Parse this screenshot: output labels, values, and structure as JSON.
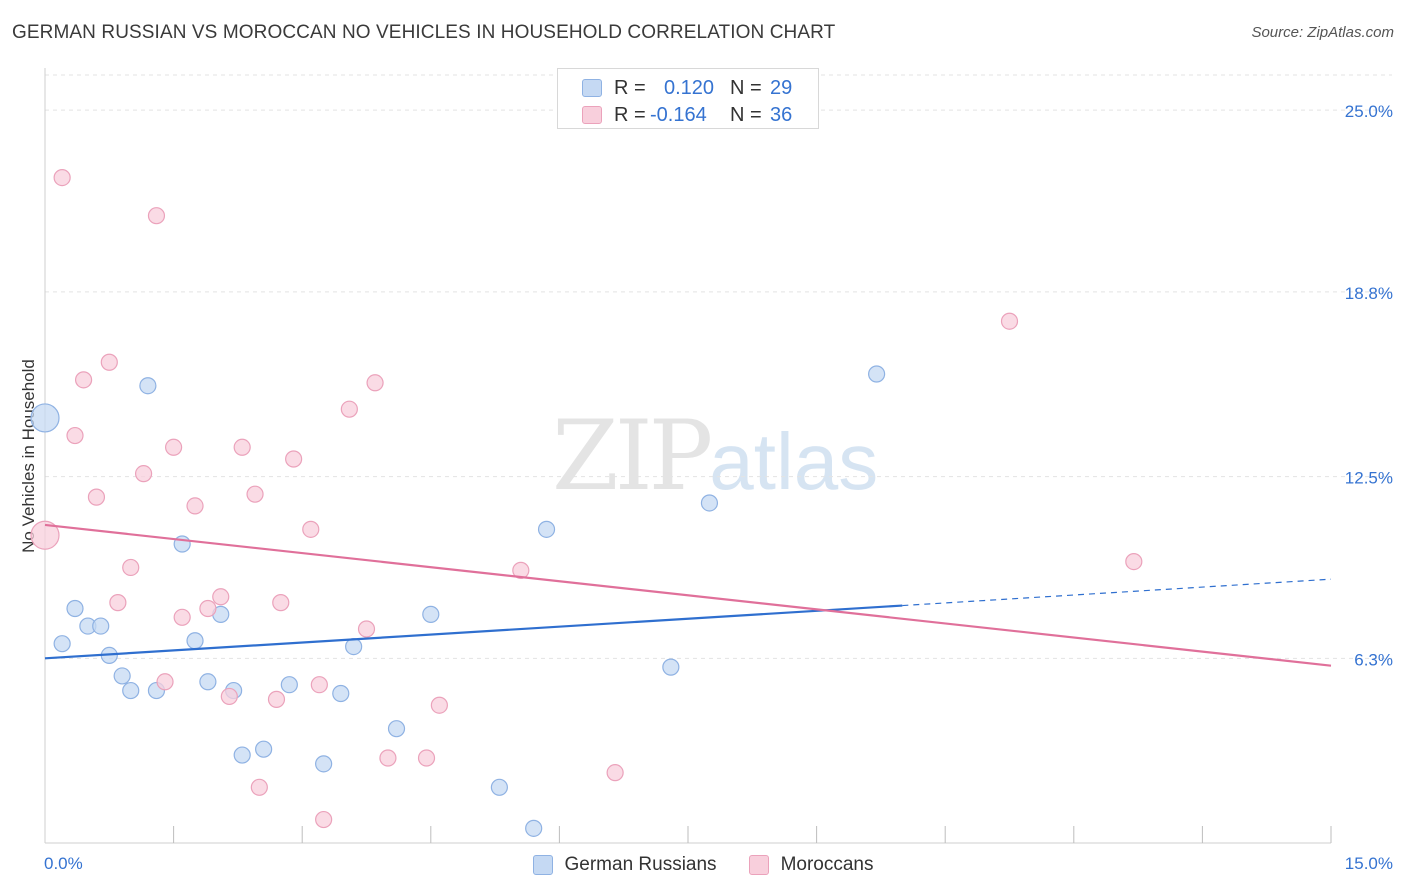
{
  "header": {
    "title": "GERMAN RUSSIAN VS MOROCCAN NO VEHICLES IN HOUSEHOLD CORRELATION CHART",
    "source": "Source: ZipAtlas.com"
  },
  "watermark": {
    "zip": "ZIP",
    "atlas": "atlas"
  },
  "legend_top": {
    "rows": [
      {
        "r_label": "R =",
        "r_value": "0.120",
        "n_label": "N =",
        "n_value": "29"
      },
      {
        "r_label": "R =",
        "r_value": "-0.164",
        "n_label": "N =",
        "n_value": "36"
      }
    ]
  },
  "legend_bottom": {
    "items": [
      {
        "label": "German Russians"
      },
      {
        "label": "Moroccans"
      }
    ]
  },
  "colors": {
    "blue_fill": "#c5d9f3",
    "blue_stroke": "#8fb2e3",
    "blue_line": "#2f6fcf",
    "pink_fill": "#f8cfdc",
    "pink_stroke": "#eba2bb",
    "pink_line": "#e0709a",
    "tick_text": "#3573d1",
    "grid": "#e3e3e3"
  },
  "chart_data": {
    "type": "scatter",
    "title": "GERMAN RUSSIAN VS MOROCCAN NO VEHICLES IN HOUSEHOLD CORRELATION CHART",
    "xlabel": "",
    "ylabel": "No Vehicles in Household",
    "xlim": [
      0,
      15
    ],
    "ylim": [
      0,
      26.2
    ],
    "x_tick_labels": [
      "0.0%",
      "15.0%"
    ],
    "y_ticks": [
      6.3,
      12.5,
      18.8,
      25.0
    ],
    "y_tick_labels": [
      "6.3%",
      "12.5%",
      "18.8%",
      "25.0%"
    ],
    "grid": true,
    "legend_position": "top-center",
    "series": [
      {
        "name": "German Russians",
        "color": "#8fb2e3",
        "r": 0.12,
        "n": 29,
        "points": [
          {
            "x": 0.0,
            "y": 14.5,
            "big": true
          },
          {
            "x": 0.2,
            "y": 6.8
          },
          {
            "x": 0.35,
            "y": 8.0
          },
          {
            "x": 0.5,
            "y": 7.4
          },
          {
            "x": 0.65,
            "y": 7.4
          },
          {
            "x": 0.75,
            "y": 6.4
          },
          {
            "x": 0.9,
            "y": 5.7
          },
          {
            "x": 1.0,
            "y": 5.2
          },
          {
            "x": 1.2,
            "y": 15.6
          },
          {
            "x": 1.3,
            "y": 5.2
          },
          {
            "x": 1.6,
            "y": 10.2
          },
          {
            "x": 1.75,
            "y": 6.9
          },
          {
            "x": 1.9,
            "y": 5.5
          },
          {
            "x": 2.05,
            "y": 7.8
          },
          {
            "x": 2.2,
            "y": 5.2
          },
          {
            "x": 2.3,
            "y": 3.0
          },
          {
            "x": 2.55,
            "y": 3.2
          },
          {
            "x": 2.85,
            "y": 5.4
          },
          {
            "x": 3.25,
            "y": 2.7
          },
          {
            "x": 3.45,
            "y": 5.1
          },
          {
            "x": 3.6,
            "y": 6.7
          },
          {
            "x": 4.1,
            "y": 3.9
          },
          {
            "x": 4.5,
            "y": 7.8
          },
          {
            "x": 5.3,
            "y": 1.9
          },
          {
            "x": 5.7,
            "y": 0.5
          },
          {
            "x": 5.85,
            "y": 10.7
          },
          {
            "x": 7.3,
            "y": 6.0
          },
          {
            "x": 7.75,
            "y": 11.6
          },
          {
            "x": 9.7,
            "y": 16.0
          }
        ],
        "trend": {
          "x0": 0,
          "y0": 6.3,
          "x1": 10.0,
          "y1": 8.1,
          "x_dash_end": 15.0,
          "y_dash_end": 9.0
        }
      },
      {
        "name": "Moroccans",
        "color": "#eba2bb",
        "r": -0.164,
        "n": 36,
        "points": [
          {
            "x": 0.0,
            "y": 10.5,
            "big": true
          },
          {
            "x": 0.2,
            "y": 22.7
          },
          {
            "x": 0.35,
            "y": 13.9
          },
          {
            "x": 0.45,
            "y": 15.8
          },
          {
            "x": 0.6,
            "y": 11.8
          },
          {
            "x": 0.75,
            "y": 16.4
          },
          {
            "x": 0.85,
            "y": 8.2
          },
          {
            "x": 1.0,
            "y": 9.4
          },
          {
            "x": 1.15,
            "y": 12.6
          },
          {
            "x": 1.3,
            "y": 21.4
          },
          {
            "x": 1.4,
            "y": 5.5
          },
          {
            "x": 1.5,
            "y": 13.5
          },
          {
            "x": 1.6,
            "y": 7.7
          },
          {
            "x": 1.75,
            "y": 11.5
          },
          {
            "x": 1.9,
            "y": 8.0
          },
          {
            "x": 2.05,
            "y": 8.4
          },
          {
            "x": 2.15,
            "y": 5.0
          },
          {
            "x": 2.3,
            "y": 13.5
          },
          {
            "x": 2.45,
            "y": 11.9
          },
          {
            "x": 2.5,
            "y": 1.9
          },
          {
            "x": 2.7,
            "y": 4.9
          },
          {
            "x": 2.75,
            "y": 8.2
          },
          {
            "x": 2.9,
            "y": 13.1
          },
          {
            "x": 3.1,
            "y": 10.7
          },
          {
            "x": 3.2,
            "y": 5.4
          },
          {
            "x": 3.25,
            "y": 0.8
          },
          {
            "x": 3.55,
            "y": 14.8
          },
          {
            "x": 3.75,
            "y": 7.3
          },
          {
            "x": 3.85,
            "y": 15.7
          },
          {
            "x": 4.0,
            "y": 2.9
          },
          {
            "x": 4.45,
            "y": 2.9
          },
          {
            "x": 4.6,
            "y": 4.7
          },
          {
            "x": 5.55,
            "y": 9.3
          },
          {
            "x": 6.65,
            "y": 2.4
          },
          {
            "x": 11.25,
            "y": 17.8
          },
          {
            "x": 12.7,
            "y": 9.6
          }
        ],
        "trend": {
          "x0": 0,
          "y0": 10.85,
          "x1": 15.0,
          "y1": 6.05
        }
      }
    ]
  }
}
